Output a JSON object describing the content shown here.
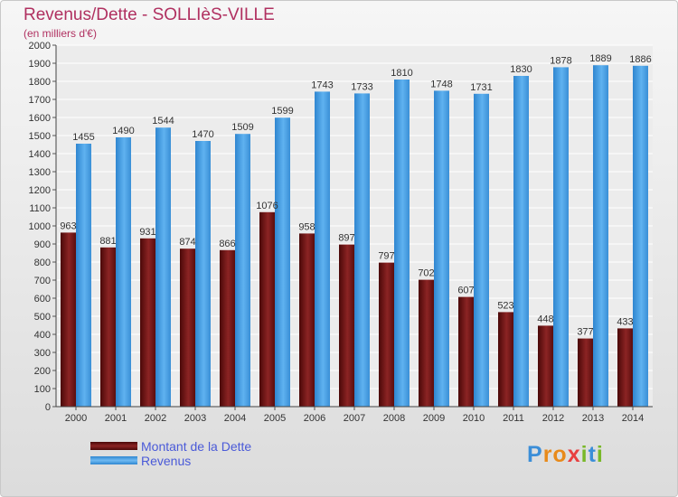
{
  "header": {
    "title": "Revenus/Dette - SOLLIèS-VILLE",
    "subtitle": "(en milliers d'€)"
  },
  "legend": {
    "items": [
      {
        "label": "Montant de la Dette",
        "color": "#7a1a1a"
      },
      {
        "label": "Revenus",
        "color": "#4aa3e8"
      }
    ]
  },
  "logo": {
    "text": "Proxiti"
  },
  "chart_data": {
    "type": "bar",
    "title": "Revenus/Dette - SOLLIèS-VILLE",
    "subtitle": "(en milliers d'€)",
    "xlabel": "",
    "ylabel": "",
    "ylim": [
      0,
      2000
    ],
    "y_ticks": [
      0,
      100,
      200,
      300,
      400,
      500,
      600,
      700,
      800,
      900,
      1000,
      1100,
      1200,
      1300,
      1400,
      1500,
      1600,
      1700,
      1800,
      1900,
      2000
    ],
    "grid": true,
    "legend_position": "bottom-left",
    "categories": [
      "2000",
      "2001",
      "2002",
      "2003",
      "2004",
      "2005",
      "2006",
      "2007",
      "2008",
      "2009",
      "2010",
      "2011",
      "2012",
      "2013",
      "2014"
    ],
    "series": [
      {
        "name": "Montant de la Dette",
        "color": "#7a1a1a",
        "values": [
          963,
          881,
          931,
          874,
          866,
          1076,
          958,
          897,
          797,
          702,
          607,
          523,
          448,
          377,
          433
        ]
      },
      {
        "name": "Revenus",
        "color": "#4aa3e8",
        "values": [
          1455,
          1490,
          1544,
          1470,
          1509,
          1599,
          1743,
          1733,
          1810,
          1748,
          1731,
          1830,
          1878,
          1889,
          1886
        ]
      }
    ]
  }
}
